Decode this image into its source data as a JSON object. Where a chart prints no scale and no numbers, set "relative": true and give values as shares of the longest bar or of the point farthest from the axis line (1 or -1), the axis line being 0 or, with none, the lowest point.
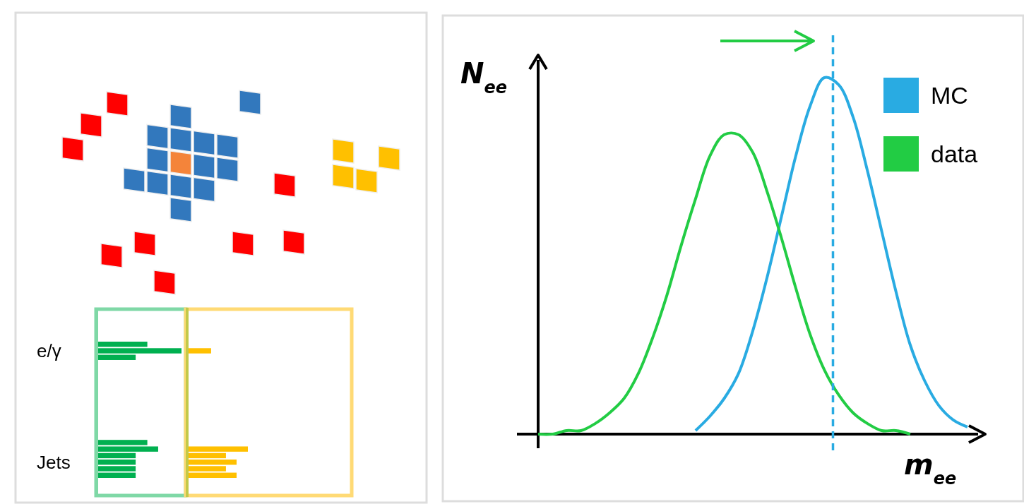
{
  "chart_data": [
    {
      "type": "bar",
      "orientation": "horizontal",
      "relative": true,
      "color": "#00b050",
      "categories": [
        null,
        "e/γ",
        null,
        null,
        null,
        null,
        null,
        null,
        null,
        null,
        null,
        null,
        null,
        null,
        null,
        null,
        null,
        null,
        "Jets",
        null,
        null
      ],
      "values": [
        0.59,
        1,
        0.45,
        null,
        null,
        null,
        null,
        null,
        null,
        null,
        null,
        null,
        null,
        null,
        null,
        0.59,
        0.72,
        0.45,
        0.45,
        0.45,
        0.45
      ]
    },
    {
      "type": "bar",
      "orientation": "horizontal",
      "relative": true,
      "color": "#ffc000",
      "categories": [
        null,
        null,
        null,
        null,
        null,
        null,
        null,
        null,
        null,
        null,
        null,
        null,
        null,
        null,
        null,
        null,
        null,
        null,
        null,
        null,
        null
      ],
      "values": [
        null,
        0.38,
        null,
        null,
        null,
        null,
        null,
        null,
        null,
        null,
        null,
        null,
        null,
        null,
        null,
        null,
        1,
        0.63,
        0.81,
        0.63,
        0.81
      ]
    },
    {
      "type": "line",
      "relative": true,
      "xlabel": "m$_{ee}$",
      "ylabel": "N$_{ee}$",
      "legend": "top right",
      "categories": [
        null,
        null,
        null,
        null,
        null,
        null,
        null,
        null,
        null,
        null,
        null,
        null,
        null,
        null,
        null,
        null,
        null,
        null,
        null,
        null,
        null,
        null,
        null,
        null,
        null,
        null,
        null,
        null,
        null,
        null,
        null
      ],
      "series": [
        {
          "name": "MC",
          "color": "#29abe2",
          "values": [
            null,
            null,
            null,
            null,
            null,
            null,
            null,
            null,
            null,
            null,
            null,
            0.01,
            0.05,
            0.1,
            0.17,
            0.29,
            0.44,
            0.61,
            0.78,
            0.92,
            1,
            0.98,
            0.89,
            0.74,
            0.57,
            0.4,
            0.25,
            0.15,
            0.08,
            0.04,
            0.02
          ]
        },
        {
          "name": "data",
          "color": "#22cc44",
          "values": [
            0,
            0,
            0.01,
            0.01,
            0.03,
            0.06,
            0.1,
            0.17,
            0.27,
            0.39,
            0.53,
            0.66,
            0.78,
            0.84,
            0.84,
            0.79,
            0.68,
            0.55,
            0.41,
            0.28,
            0.18,
            0.11,
            0.06,
            0.03,
            0.01,
            0.01,
            0,
            null,
            null,
            null,
            null
          ]
        }
      ]
    }
  ]
}
